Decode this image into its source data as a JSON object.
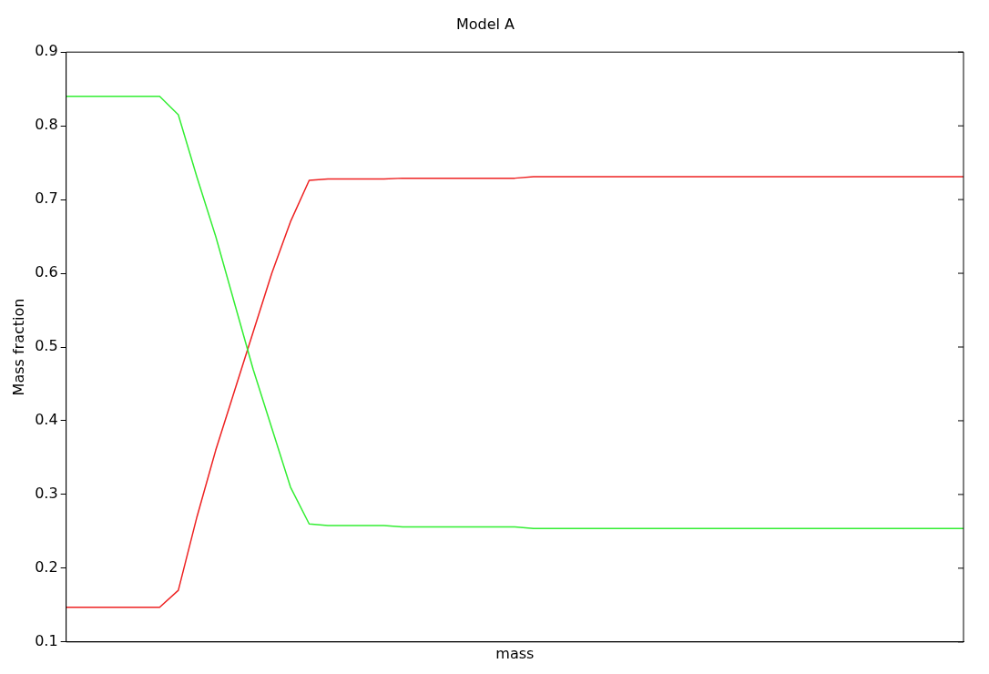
{
  "chart_data": {
    "type": "line",
    "title": "Model A",
    "xlabel": "mass",
    "ylabel": "Mass fraction",
    "categories": [
      null,
      null,
      null,
      null,
      null,
      null,
      null,
      null,
      null,
      null,
      null,
      null,
      null,
      null,
      null,
      null,
      null,
      null,
      null,
      null,
      null,
      null,
      null,
      null,
      null,
      null,
      null,
      null,
      null,
      null,
      null,
      null,
      null,
      null,
      null,
      null,
      null,
      null,
      null,
      null,
      null,
      null,
      null,
      null,
      null,
      null,
      null,
      null,
      null
    ],
    "series": [
      {
        "color": "#33ee33",
        "values": [
          0.84,
          0.84,
          0.84,
          0.84,
          0.84,
          0.84,
          0.815,
          0.73,
          0.65,
          0.56,
          0.47,
          0.39,
          0.31,
          0.26,
          0.258,
          0.258,
          0.258,
          0.258,
          0.256,
          0.256,
          0.256,
          0.256,
          0.256,
          0.256,
          0.256,
          0.254,
          0.254,
          0.254,
          0.254,
          0.254,
          0.254,
          0.254,
          0.254,
          0.254,
          0.254,
          0.254,
          0.254,
          0.254,
          0.254,
          0.254,
          0.254,
          0.254,
          0.254,
          0.254,
          0.254,
          0.254,
          0.254,
          0.254,
          0.254
        ]
      },
      {
        "color": "#ee2222",
        "values": [
          0.147,
          0.147,
          0.147,
          0.147,
          0.147,
          0.147,
          0.17,
          0.27,
          0.36,
          0.44,
          0.52,
          0.6,
          0.67,
          0.726,
          0.728,
          0.728,
          0.728,
          0.728,
          0.729,
          0.729,
          0.729,
          0.729,
          0.729,
          0.729,
          0.729,
          0.731,
          0.731,
          0.731,
          0.731,
          0.731,
          0.731,
          0.731,
          0.731,
          0.731,
          0.731,
          0.731,
          0.731,
          0.731,
          0.731,
          0.731,
          0.731,
          0.731,
          0.731,
          0.731,
          0.731,
          0.731,
          0.731,
          0.731,
          0.731
        ]
      }
    ],
    "ylim": [
      0.1,
      0.9
    ],
    "yticks": [
      0.1,
      0.2,
      0.3,
      0.4,
      0.5,
      0.6,
      0.7,
      0.8,
      0.9
    ],
    "grid": false,
    "marker": "none",
    "line_style": "solid"
  }
}
